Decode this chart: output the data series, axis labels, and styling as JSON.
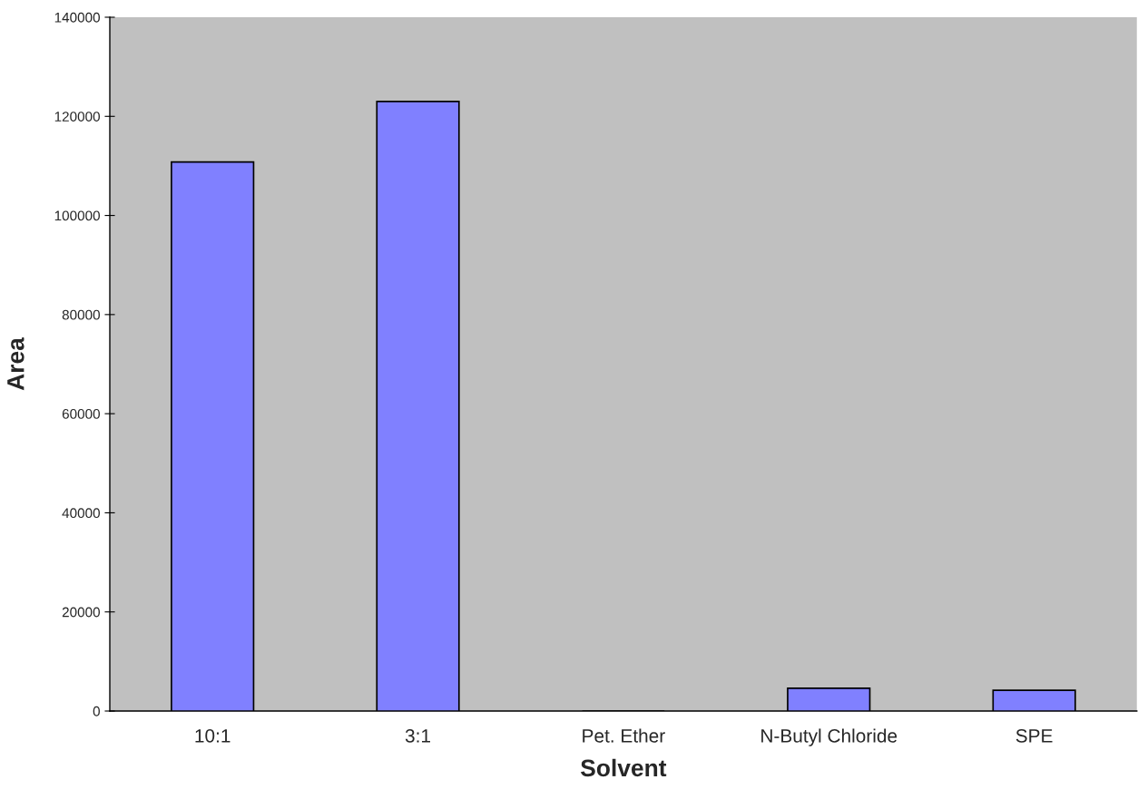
{
  "chart_data": {
    "type": "bar",
    "xlabel": "Solvent",
    "ylabel": "Area",
    "categories": [
      "10:1",
      "3:1",
      "Pet. Ether",
      "N-Butyl Chloride",
      "SPE"
    ],
    "values": [
      110800,
      123000,
      0,
      4600,
      4200
    ],
    "color": "#8080ff",
    "ylim": [
      0,
      140000
    ],
    "yticks": [
      0,
      20000,
      40000,
      60000,
      80000,
      100000,
      120000,
      140000
    ],
    "grid": false
  }
}
